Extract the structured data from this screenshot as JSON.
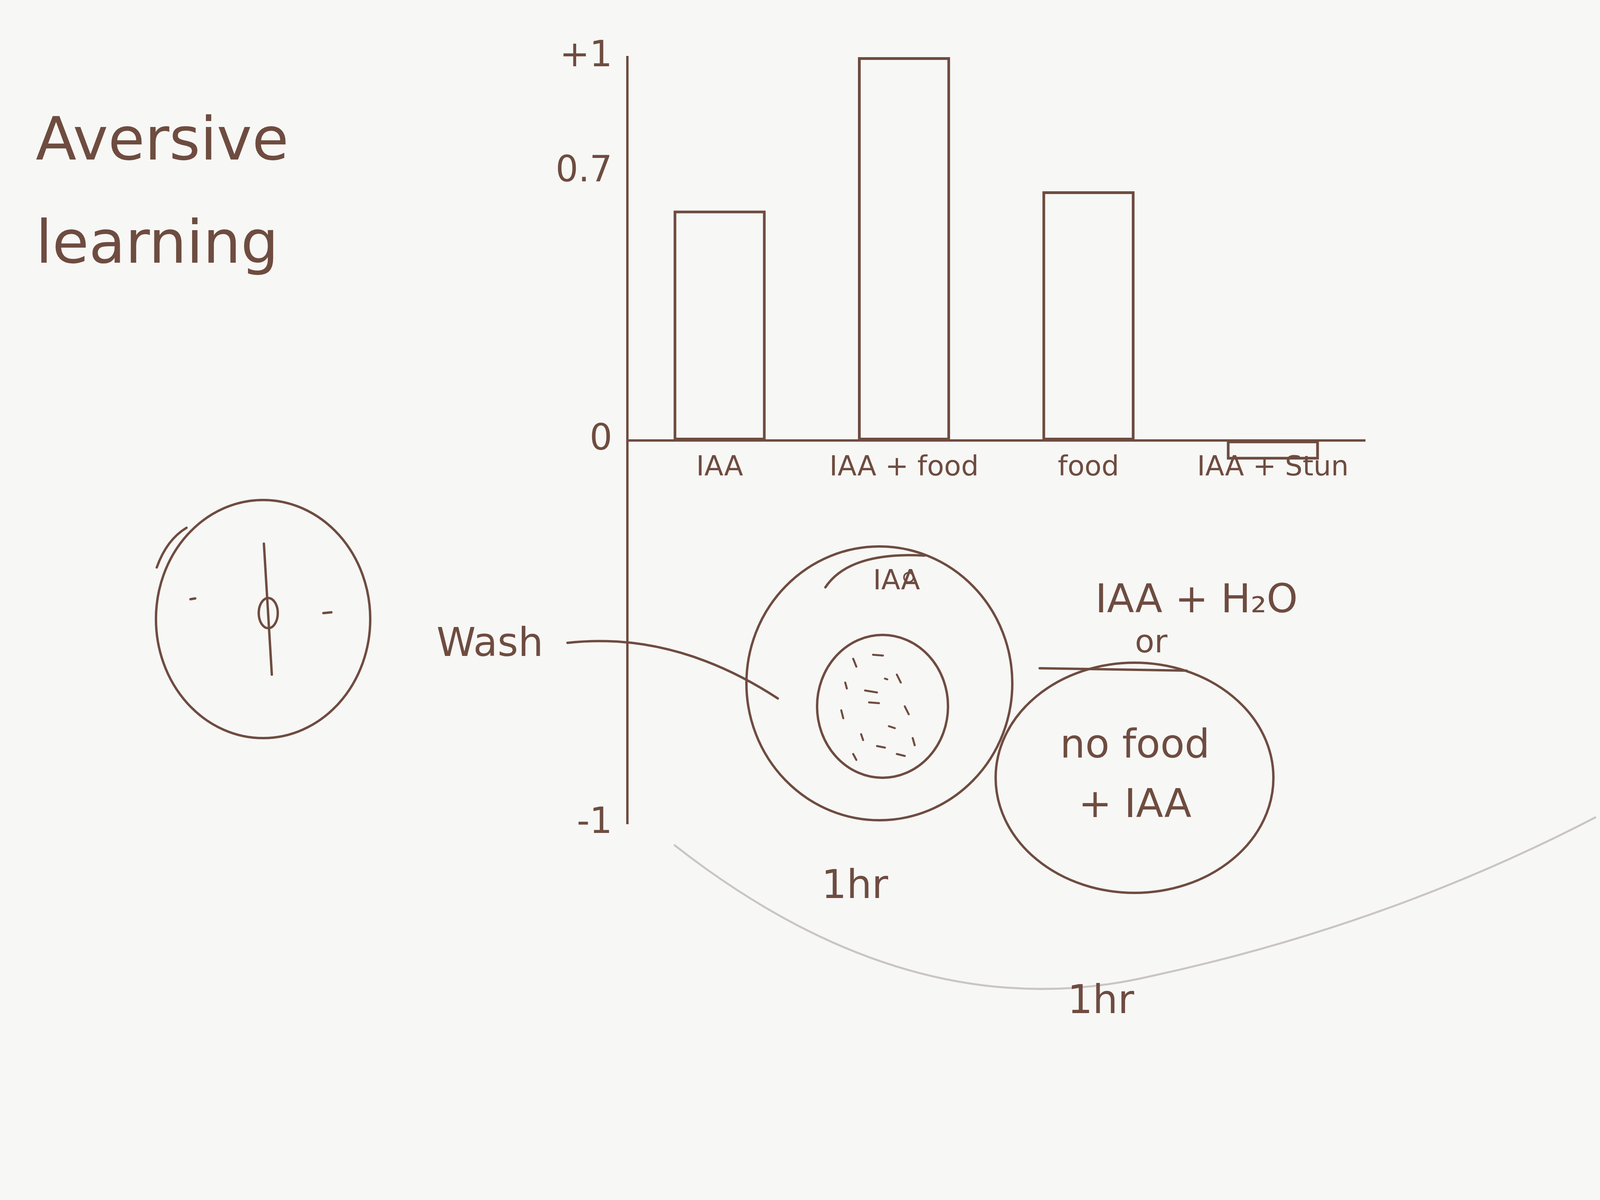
{
  "chart_data": {
    "type": "bar",
    "title": "Aversive learning",
    "categories": [
      "IAA",
      "IAA + food",
      "food",
      "IAA + Stun"
    ],
    "values": [
      0.6,
      1,
      0.65,
      -0.05
    ],
    "color": "#6e4c40",
    "ylim": [
      -1,
      1
    ],
    "yticks": [
      -1,
      0,
      0.7,
      {
        "value": 1,
        "label": "+1"
      }
    ],
    "grid": false
  },
  "annotations": {
    "wash": "Wash",
    "dish_1": {
      "label": "IAA",
      "time": "1hr"
    },
    "alternative": [
      "IAA + H₂O",
      "or"
    ],
    "dish_2": {
      "label": "no food + IAA",
      "time": "1hr"
    }
  }
}
